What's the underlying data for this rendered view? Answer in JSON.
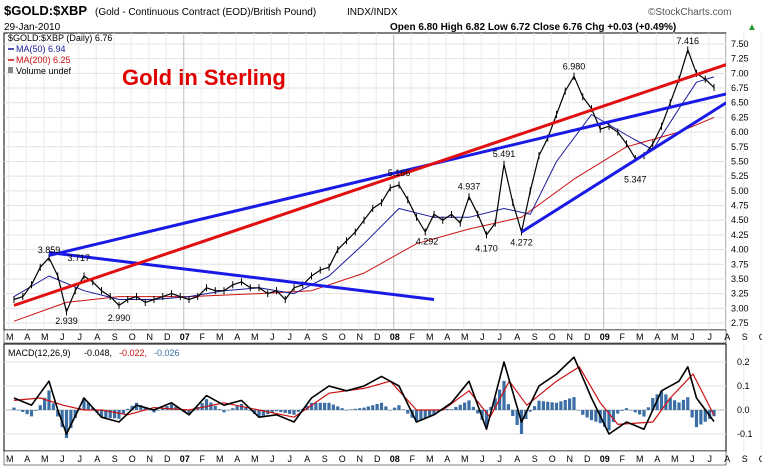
{
  "header": {
    "symbol": "$GOLD:$XBP",
    "description": "(Gold - Continuous Contract (EOD)/British Pound)",
    "exchange": "INDX/INDX",
    "date": "29-Jan-2010",
    "ohlc_text": "Open 6.80  High 6.82  Low 6.72  Close 6.76  Chg +0.03 (+0.49%)",
    "chg_arrow": "▲",
    "brand": "©StockCharts.com"
  },
  "legend": {
    "price_entry": "$GOLD:$XBP (Daily) 6.76",
    "ma50_entry": "MA(50) 6.94",
    "ma200_entry": "MA(200) 6.25",
    "volume_entry": "Volume undef"
  },
  "annotation_title": "Gold in Sterling",
  "macd_label": {
    "name": "MACD(12,26,9)",
    "v1": "-0.048,",
    "v2": "-0.022,",
    "v3": "-0.026"
  },
  "colors": {
    "price": "#000000",
    "ma50": "#1a1a9a",
    "ma200": "#cc1111",
    "trend_blue": "#1a1ae6",
    "trend_red": "#e01010",
    "macd_line": "#000000",
    "signal_line": "#cc1111",
    "histogram": "#3a6ea5",
    "title": "#e00000"
  },
  "chart_data": {
    "type": "line",
    "title": "Gold in Sterling",
    "x_range": [
      "2006-04",
      "2010-01"
    ],
    "ylim": [
      2.75,
      7.5
    ],
    "y_ticks": [
      "2.75",
      "3.00",
      "3.25",
      "3.50",
      "3.75",
      "4.00",
      "4.25",
      "4.50",
      "4.75",
      "5.00",
      "5.25",
      "5.50",
      "5.75",
      "6.00",
      "6.25",
      "6.50",
      "6.75",
      "7.00",
      "7.25",
      "7.50"
    ],
    "x_labels": [
      "M",
      "A",
      "M",
      "J",
      "J",
      "A",
      "S",
      "O",
      "N",
      "D",
      "07",
      "F",
      "M",
      "A",
      "M",
      "J",
      "J",
      "A",
      "S",
      "O",
      "N",
      "D",
      "08",
      "F",
      "M",
      "A",
      "M",
      "J",
      "J",
      "A",
      "S",
      "O",
      "N",
      "D",
      "09",
      "F",
      "M",
      "A",
      "M",
      "J",
      "J",
      "A",
      "S",
      "O",
      "N",
      "D",
      "10"
    ],
    "price_points": [
      {
        "m": 0,
        "v": 3.15
      },
      {
        "m": 0.5,
        "v": 3.2
      },
      {
        "m": 1,
        "v": 3.4
      },
      {
        "m": 1.5,
        "v": 3.7
      },
      {
        "m": 2,
        "v": 3.86
      },
      {
        "m": 2.5,
        "v": 3.55
      },
      {
        "m": 3,
        "v": 2.94
      },
      {
        "m": 3.5,
        "v": 3.3
      },
      {
        "m": 4,
        "v": 3.55
      },
      {
        "m": 4.5,
        "v": 3.45
      },
      {
        "m": 5,
        "v": 3.3
      },
      {
        "m": 5.5,
        "v": 3.2
      },
      {
        "m": 6,
        "v": 3.05
      },
      {
        "m": 6.5,
        "v": 3.15
      },
      {
        "m": 7,
        "v": 3.2
      },
      {
        "m": 7.5,
        "v": 3.1
      },
      {
        "m": 8,
        "v": 3.15
      },
      {
        "m": 8.5,
        "v": 3.2
      },
      {
        "m": 9,
        "v": 3.25
      },
      {
        "m": 9.5,
        "v": 3.2
      },
      {
        "m": 10,
        "v": 3.15
      },
      {
        "m": 10.5,
        "v": 3.2
      },
      {
        "m": 11,
        "v": 3.35
      },
      {
        "m": 11.5,
        "v": 3.3
      },
      {
        "m": 12,
        "v": 3.3
      },
      {
        "m": 12.5,
        "v": 3.4
      },
      {
        "m": 13,
        "v": 3.45
      },
      {
        "m": 13.5,
        "v": 3.35
      },
      {
        "m": 14,
        "v": 3.35
      },
      {
        "m": 14.5,
        "v": 3.25
      },
      {
        "m": 15,
        "v": 3.3
      },
      {
        "m": 15.5,
        "v": 3.15
      },
      {
        "m": 16,
        "v": 3.35
      },
      {
        "m": 16.5,
        "v": 3.4
      },
      {
        "m": 17,
        "v": 3.55
      },
      {
        "m": 17.5,
        "v": 3.65
      },
      {
        "m": 18,
        "v": 3.7
      },
      {
        "m": 18.5,
        "v": 4.0
      },
      {
        "m": 19,
        "v": 4.15
      },
      {
        "m": 19.5,
        "v": 4.3
      },
      {
        "m": 20,
        "v": 4.5
      },
      {
        "m": 20.5,
        "v": 4.7
      },
      {
        "m": 21,
        "v": 4.8
      },
      {
        "m": 21.5,
        "v": 5.05
      },
      {
        "m": 22,
        "v": 5.1
      },
      {
        "m": 22.5,
        "v": 4.85
      },
      {
        "m": 23,
        "v": 4.55
      },
      {
        "m": 23.5,
        "v": 4.3
      },
      {
        "m": 24,
        "v": 4.6
      },
      {
        "m": 24.5,
        "v": 4.5
      },
      {
        "m": 25,
        "v": 4.6
      },
      {
        "m": 25.5,
        "v": 4.45
      },
      {
        "m": 26,
        "v": 4.9
      },
      {
        "m": 26.5,
        "v": 4.6
      },
      {
        "m": 27,
        "v": 4.25
      },
      {
        "m": 27.5,
        "v": 4.45
      },
      {
        "m": 28,
        "v": 5.45
      },
      {
        "m": 28.5,
        "v": 4.8
      },
      {
        "m": 29,
        "v": 4.3
      },
      {
        "m": 29.5,
        "v": 5.0
      },
      {
        "m": 30,
        "v": 5.6
      },
      {
        "m": 30.5,
        "v": 5.9
      },
      {
        "m": 31,
        "v": 6.3
      },
      {
        "m": 31.5,
        "v": 6.7
      },
      {
        "m": 32,
        "v": 6.95
      },
      {
        "m": 32.5,
        "v": 6.6
      },
      {
        "m": 33,
        "v": 6.4
      },
      {
        "m": 33.5,
        "v": 6.05
      },
      {
        "m": 34,
        "v": 6.1
      },
      {
        "m": 34.5,
        "v": 6.0
      },
      {
        "m": 35,
        "v": 5.8
      },
      {
        "m": 35.5,
        "v": 5.55
      },
      {
        "m": 36,
        "v": 5.6
      },
      {
        "m": 36.5,
        "v": 5.8
      },
      {
        "m": 37,
        "v": 6.1
      },
      {
        "m": 37.5,
        "v": 6.5
      },
      {
        "m": 38,
        "v": 6.9
      },
      {
        "m": 38.5,
        "v": 7.4
      },
      {
        "m": 39,
        "v": 7.0
      },
      {
        "m": 39.5,
        "v": 6.9
      },
      {
        "m": 40,
        "v": 6.76
      }
    ],
    "ma50_points": [
      {
        "m": 0,
        "v": 3.2
      },
      {
        "m": 2,
        "v": 3.55
      },
      {
        "m": 4,
        "v": 3.3
      },
      {
        "m": 6,
        "v": 3.15
      },
      {
        "m": 8,
        "v": 3.15
      },
      {
        "m": 10,
        "v": 3.2
      },
      {
        "m": 12,
        "v": 3.3
      },
      {
        "m": 14,
        "v": 3.35
      },
      {
        "m": 16,
        "v": 3.25
      },
      {
        "m": 18,
        "v": 3.55
      },
      {
        "m": 20,
        "v": 4.1
      },
      {
        "m": 22,
        "v": 4.7
      },
      {
        "m": 24,
        "v": 4.55
      },
      {
        "m": 26,
        "v": 4.55
      },
      {
        "m": 28,
        "v": 4.7
      },
      {
        "m": 29.5,
        "v": 4.6
      },
      {
        "m": 31,
        "v": 5.5
      },
      {
        "m": 33,
        "v": 6.3
      },
      {
        "m": 35,
        "v": 5.95
      },
      {
        "m": 36.5,
        "v": 5.7
      },
      {
        "m": 38,
        "v": 6.4
      },
      {
        "m": 39,
        "v": 6.85
      },
      {
        "m": 40,
        "v": 6.94
      }
    ],
    "ma200_points": [
      {
        "m": 0,
        "v": 2.78
      },
      {
        "m": 3,
        "v": 3.1
      },
      {
        "m": 6,
        "v": 3.2
      },
      {
        "m": 10,
        "v": 3.2
      },
      {
        "m": 14,
        "v": 3.25
      },
      {
        "m": 17,
        "v": 3.3
      },
      {
        "m": 20,
        "v": 3.6
      },
      {
        "m": 23,
        "v": 4.1
      },
      {
        "m": 26,
        "v": 4.35
      },
      {
        "m": 29,
        "v": 4.55
      },
      {
        "m": 32,
        "v": 5.2
      },
      {
        "m": 35,
        "v": 5.75
      },
      {
        "m": 38,
        "v": 6.0
      },
      {
        "m": 40,
        "v": 6.25
      }
    ],
    "price_labels": [
      {
        "text": "3.859",
        "m": 2.0,
        "v": 3.859,
        "pos": "above"
      },
      {
        "text": "3.717",
        "m": 3.7,
        "v": 3.717,
        "pos": "above"
      },
      {
        "text": "2.939",
        "m": 3.0,
        "v": 2.939,
        "pos": "below"
      },
      {
        "text": "2.990",
        "m": 6.0,
        "v": 2.99,
        "pos": "below"
      },
      {
        "text": "5.166",
        "m": 22.0,
        "v": 5.166,
        "pos": "above"
      },
      {
        "text": "4.937",
        "m": 26.0,
        "v": 4.937,
        "pos": "above"
      },
      {
        "text": "4.292",
        "m": 23.6,
        "v": 4.292,
        "pos": "below"
      },
      {
        "text": "5.491",
        "m": 28.0,
        "v": 5.491,
        "pos": "above"
      },
      {
        "text": "4.170",
        "m": 27.0,
        "v": 4.17,
        "pos": "below"
      },
      {
        "text": "4.272",
        "m": 29.0,
        "v": 4.272,
        "pos": "below"
      },
      {
        "text": "6.980",
        "m": 32.0,
        "v": 6.98,
        "pos": "above"
      },
      {
        "text": "5.347",
        "m": 35.5,
        "v": 5.347,
        "pos": "below"
      },
      {
        "text": "7.416",
        "m": 38.5,
        "v": 7.416,
        "pos": "above"
      }
    ],
    "trendlines": [
      {
        "name": "blue-upper",
        "color": "blue",
        "from": {
          "m": 2.0,
          "v": 3.9
        },
        "to": {
          "m": 40.7,
          "v": 6.65
        }
      },
      {
        "name": "blue-descending",
        "color": "blue",
        "from": {
          "m": 2.0,
          "v": 3.95
        },
        "to": {
          "m": 24.0,
          "v": 3.15
        }
      },
      {
        "name": "blue-lower",
        "color": "blue",
        "from": {
          "m": 29.0,
          "v": 4.3
        },
        "to": {
          "m": 40.7,
          "v": 6.5
        }
      },
      {
        "name": "red-main",
        "color": "red",
        "from": {
          "m": 0.0,
          "v": 3.05
        },
        "to": {
          "m": 40.7,
          "v": 7.15
        }
      }
    ],
    "macd": {
      "ylim": [
        -0.15,
        0.25
      ],
      "y_ticks": [
        "0.2",
        "0.1",
        "0.0",
        "-0.1"
      ],
      "macd_points": [
        {
          "m": 0,
          "v": 0.05
        },
        {
          "m": 1,
          "v": 0.02
        },
        {
          "m": 2,
          "v": 0.12
        },
        {
          "m": 2.5,
          "v": 0.0
        },
        {
          "m": 3,
          "v": -0.1
        },
        {
          "m": 4,
          "v": 0.05
        },
        {
          "m": 5,
          "v": -0.03
        },
        {
          "m": 6,
          "v": -0.05
        },
        {
          "m": 7,
          "v": 0.02
        },
        {
          "m": 8,
          "v": 0.0
        },
        {
          "m": 9,
          "v": 0.03
        },
        {
          "m": 10,
          "v": -0.02
        },
        {
          "m": 11,
          "v": 0.06
        },
        {
          "m": 12,
          "v": 0.02
        },
        {
          "m": 13,
          "v": 0.04
        },
        {
          "m": 14,
          "v": -0.03
        },
        {
          "m": 15,
          "v": -0.02
        },
        {
          "m": 16,
          "v": -0.05
        },
        {
          "m": 17,
          "v": 0.05
        },
        {
          "m": 18,
          "v": 0.1
        },
        {
          "m": 19,
          "v": 0.08
        },
        {
          "m": 20,
          "v": 0.1
        },
        {
          "m": 21,
          "v": 0.14
        },
        {
          "m": 22,
          "v": 0.1
        },
        {
          "m": 23,
          "v": -0.05
        },
        {
          "m": 24,
          "v": -0.02
        },
        {
          "m": 25,
          "v": 0.03
        },
        {
          "m": 26,
          "v": 0.12
        },
        {
          "m": 27,
          "v": -0.08
        },
        {
          "m": 28,
          "v": 0.2
        },
        {
          "m": 29,
          "v": -0.05
        },
        {
          "m": 30,
          "v": 0.1
        },
        {
          "m": 31,
          "v": 0.15
        },
        {
          "m": 32,
          "v": 0.22
        },
        {
          "m": 33,
          "v": 0.05
        },
        {
          "m": 34,
          "v": -0.1
        },
        {
          "m": 35,
          "v": -0.05
        },
        {
          "m": 36,
          "v": -0.08
        },
        {
          "m": 37,
          "v": 0.08
        },
        {
          "m": 38,
          "v": 0.12
        },
        {
          "m": 38.5,
          "v": 0.18
        },
        {
          "m": 39,
          "v": 0.05
        },
        {
          "m": 40,
          "v": -0.048
        }
      ],
      "signal_points": [
        {
          "m": 0,
          "v": 0.04
        },
        {
          "m": 1.5,
          "v": 0.05
        },
        {
          "m": 2.8,
          "v": 0.02
        },
        {
          "m": 4,
          "v": 0.0
        },
        {
          "m": 5,
          "v": 0.0
        },
        {
          "m": 6.5,
          "v": -0.02
        },
        {
          "m": 8,
          "v": 0.01
        },
        {
          "m": 10,
          "v": 0.0
        },
        {
          "m": 12,
          "v": 0.03
        },
        {
          "m": 14,
          "v": 0.0
        },
        {
          "m": 16,
          "v": -0.03
        },
        {
          "m": 18,
          "v": 0.07
        },
        {
          "m": 20,
          "v": 0.09
        },
        {
          "m": 21.5,
          "v": 0.12
        },
        {
          "m": 23,
          "v": 0.0
        },
        {
          "m": 24.5,
          "v": 0.0
        },
        {
          "m": 26,
          "v": 0.08
        },
        {
          "m": 27.2,
          "v": -0.03
        },
        {
          "m": 28.3,
          "v": 0.12
        },
        {
          "m": 29.3,
          "v": 0.02
        },
        {
          "m": 31,
          "v": 0.12
        },
        {
          "m": 32.3,
          "v": 0.18
        },
        {
          "m": 33.5,
          "v": 0.03
        },
        {
          "m": 34.5,
          "v": -0.06
        },
        {
          "m": 36.5,
          "v": -0.05
        },
        {
          "m": 37.5,
          "v": 0.05
        },
        {
          "m": 38.8,
          "v": 0.15
        },
        {
          "m": 39.5,
          "v": 0.05
        },
        {
          "m": 40,
          "v": -0.022
        }
      ]
    }
  }
}
